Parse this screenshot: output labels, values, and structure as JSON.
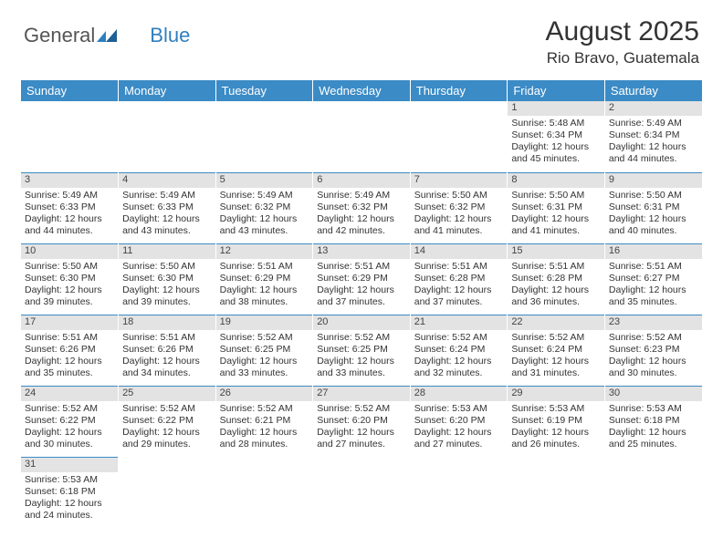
{
  "logo": {
    "part1": "General",
    "part2": "Blue"
  },
  "title": "August 2025",
  "location": "Rio Bravo, Guatemala",
  "colors": {
    "header_bg": "#3b8bc6",
    "header_text": "#ffffff",
    "daynum_bg": "#e3e3e3",
    "row_border": "#3b8bc6",
    "text": "#333333"
  },
  "dayNames": [
    "Sunday",
    "Monday",
    "Tuesday",
    "Wednesday",
    "Thursday",
    "Friday",
    "Saturday"
  ],
  "weeks": [
    [
      null,
      null,
      null,
      null,
      null,
      {
        "n": "1",
        "sunrise": "Sunrise: 5:48 AM",
        "sunset": "Sunset: 6:34 PM",
        "day1": "Daylight: 12 hours",
        "day2": "and 45 minutes."
      },
      {
        "n": "2",
        "sunrise": "Sunrise: 5:49 AM",
        "sunset": "Sunset: 6:34 PM",
        "day1": "Daylight: 12 hours",
        "day2": "and 44 minutes."
      }
    ],
    [
      {
        "n": "3",
        "sunrise": "Sunrise: 5:49 AM",
        "sunset": "Sunset: 6:33 PM",
        "day1": "Daylight: 12 hours",
        "day2": "and 44 minutes."
      },
      {
        "n": "4",
        "sunrise": "Sunrise: 5:49 AM",
        "sunset": "Sunset: 6:33 PM",
        "day1": "Daylight: 12 hours",
        "day2": "and 43 minutes."
      },
      {
        "n": "5",
        "sunrise": "Sunrise: 5:49 AM",
        "sunset": "Sunset: 6:32 PM",
        "day1": "Daylight: 12 hours",
        "day2": "and 43 minutes."
      },
      {
        "n": "6",
        "sunrise": "Sunrise: 5:49 AM",
        "sunset": "Sunset: 6:32 PM",
        "day1": "Daylight: 12 hours",
        "day2": "and 42 minutes."
      },
      {
        "n": "7",
        "sunrise": "Sunrise: 5:50 AM",
        "sunset": "Sunset: 6:32 PM",
        "day1": "Daylight: 12 hours",
        "day2": "and 41 minutes."
      },
      {
        "n": "8",
        "sunrise": "Sunrise: 5:50 AM",
        "sunset": "Sunset: 6:31 PM",
        "day1": "Daylight: 12 hours",
        "day2": "and 41 minutes."
      },
      {
        "n": "9",
        "sunrise": "Sunrise: 5:50 AM",
        "sunset": "Sunset: 6:31 PM",
        "day1": "Daylight: 12 hours",
        "day2": "and 40 minutes."
      }
    ],
    [
      {
        "n": "10",
        "sunrise": "Sunrise: 5:50 AM",
        "sunset": "Sunset: 6:30 PM",
        "day1": "Daylight: 12 hours",
        "day2": "and 39 minutes."
      },
      {
        "n": "11",
        "sunrise": "Sunrise: 5:50 AM",
        "sunset": "Sunset: 6:30 PM",
        "day1": "Daylight: 12 hours",
        "day2": "and 39 minutes."
      },
      {
        "n": "12",
        "sunrise": "Sunrise: 5:51 AM",
        "sunset": "Sunset: 6:29 PM",
        "day1": "Daylight: 12 hours",
        "day2": "and 38 minutes."
      },
      {
        "n": "13",
        "sunrise": "Sunrise: 5:51 AM",
        "sunset": "Sunset: 6:29 PM",
        "day1": "Daylight: 12 hours",
        "day2": "and 37 minutes."
      },
      {
        "n": "14",
        "sunrise": "Sunrise: 5:51 AM",
        "sunset": "Sunset: 6:28 PM",
        "day1": "Daylight: 12 hours",
        "day2": "and 37 minutes."
      },
      {
        "n": "15",
        "sunrise": "Sunrise: 5:51 AM",
        "sunset": "Sunset: 6:28 PM",
        "day1": "Daylight: 12 hours",
        "day2": "and 36 minutes."
      },
      {
        "n": "16",
        "sunrise": "Sunrise: 5:51 AM",
        "sunset": "Sunset: 6:27 PM",
        "day1": "Daylight: 12 hours",
        "day2": "and 35 minutes."
      }
    ],
    [
      {
        "n": "17",
        "sunrise": "Sunrise: 5:51 AM",
        "sunset": "Sunset: 6:26 PM",
        "day1": "Daylight: 12 hours",
        "day2": "and 35 minutes."
      },
      {
        "n": "18",
        "sunrise": "Sunrise: 5:51 AM",
        "sunset": "Sunset: 6:26 PM",
        "day1": "Daylight: 12 hours",
        "day2": "and 34 minutes."
      },
      {
        "n": "19",
        "sunrise": "Sunrise: 5:52 AM",
        "sunset": "Sunset: 6:25 PM",
        "day1": "Daylight: 12 hours",
        "day2": "and 33 minutes."
      },
      {
        "n": "20",
        "sunrise": "Sunrise: 5:52 AM",
        "sunset": "Sunset: 6:25 PM",
        "day1": "Daylight: 12 hours",
        "day2": "and 33 minutes."
      },
      {
        "n": "21",
        "sunrise": "Sunrise: 5:52 AM",
        "sunset": "Sunset: 6:24 PM",
        "day1": "Daylight: 12 hours",
        "day2": "and 32 minutes."
      },
      {
        "n": "22",
        "sunrise": "Sunrise: 5:52 AM",
        "sunset": "Sunset: 6:24 PM",
        "day1": "Daylight: 12 hours",
        "day2": "and 31 minutes."
      },
      {
        "n": "23",
        "sunrise": "Sunrise: 5:52 AM",
        "sunset": "Sunset: 6:23 PM",
        "day1": "Daylight: 12 hours",
        "day2": "and 30 minutes."
      }
    ],
    [
      {
        "n": "24",
        "sunrise": "Sunrise: 5:52 AM",
        "sunset": "Sunset: 6:22 PM",
        "day1": "Daylight: 12 hours",
        "day2": "and 30 minutes."
      },
      {
        "n": "25",
        "sunrise": "Sunrise: 5:52 AM",
        "sunset": "Sunset: 6:22 PM",
        "day1": "Daylight: 12 hours",
        "day2": "and 29 minutes."
      },
      {
        "n": "26",
        "sunrise": "Sunrise: 5:52 AM",
        "sunset": "Sunset: 6:21 PM",
        "day1": "Daylight: 12 hours",
        "day2": "and 28 minutes."
      },
      {
        "n": "27",
        "sunrise": "Sunrise: 5:52 AM",
        "sunset": "Sunset: 6:20 PM",
        "day1": "Daylight: 12 hours",
        "day2": "and 27 minutes."
      },
      {
        "n": "28",
        "sunrise": "Sunrise: 5:53 AM",
        "sunset": "Sunset: 6:20 PM",
        "day1": "Daylight: 12 hours",
        "day2": "and 27 minutes."
      },
      {
        "n": "29",
        "sunrise": "Sunrise: 5:53 AM",
        "sunset": "Sunset: 6:19 PM",
        "day1": "Daylight: 12 hours",
        "day2": "and 26 minutes."
      },
      {
        "n": "30",
        "sunrise": "Sunrise: 5:53 AM",
        "sunset": "Sunset: 6:18 PM",
        "day1": "Daylight: 12 hours",
        "day2": "and 25 minutes."
      }
    ],
    [
      {
        "n": "31",
        "sunrise": "Sunrise: 5:53 AM",
        "sunset": "Sunset: 6:18 PM",
        "day1": "Daylight: 12 hours",
        "day2": "and 24 minutes."
      },
      null,
      null,
      null,
      null,
      null,
      null
    ]
  ]
}
